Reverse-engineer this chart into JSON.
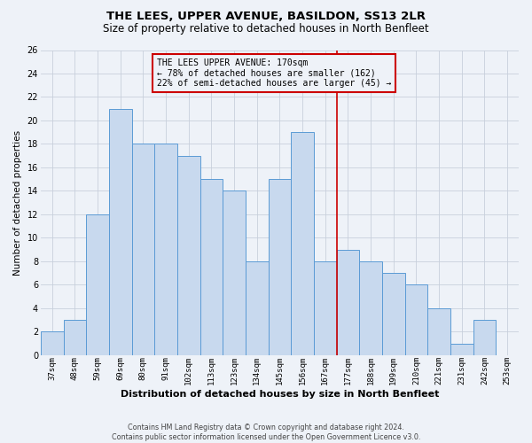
{
  "title": "THE LEES, UPPER AVENUE, BASILDON, SS13 2LR",
  "subtitle": "Size of property relative to detached houses in North Benfleet",
  "xlabel": "Distribution of detached houses by size in North Benfleet",
  "ylabel": "Number of detached properties",
  "footer1": "Contains HM Land Registry data © Crown copyright and database right 2024.",
  "footer2": "Contains public sector information licensed under the Open Government Licence v3.0.",
  "categories": [
    "37sqm",
    "48sqm",
    "59sqm",
    "69sqm",
    "80sqm",
    "91sqm",
    "102sqm",
    "113sqm",
    "123sqm",
    "134sqm",
    "145sqm",
    "156sqm",
    "167sqm",
    "177sqm",
    "188sqm",
    "199sqm",
    "210sqm",
    "221sqm",
    "231sqm",
    "242sqm",
    "253sqm"
  ],
  "values": [
    2,
    3,
    12,
    21,
    18,
    18,
    17,
    15,
    14,
    8,
    15,
    19,
    8,
    9,
    8,
    7,
    6,
    4,
    1,
    3,
    0
  ],
  "bar_color": "#c8d9ee",
  "bar_edge_color": "#5b9bd5",
  "vline_index": 12,
  "vline_color": "#cc0000",
  "annotation_title": "THE LEES UPPER AVENUE: 170sqm",
  "annotation_line1": "← 78% of detached houses are smaller (162)",
  "annotation_line2": "22% of semi-detached houses are larger (45) →",
  "annotation_box_color": "#cc0000",
  "ylim": [
    0,
    26
  ],
  "yticks": [
    0,
    2,
    4,
    6,
    8,
    10,
    12,
    14,
    16,
    18,
    20,
    22,
    24,
    26
  ],
  "grid_color": "#c8d0dc",
  "background_color": "#eef2f8",
  "title_fontsize": 9.5,
  "subtitle_fontsize": 8.5,
  "ylabel_fontsize": 7.5,
  "xlabel_fontsize": 8,
  "tick_fontsize": 6.5,
  "annot_fontsize": 7,
  "footer_fontsize": 5.8
}
